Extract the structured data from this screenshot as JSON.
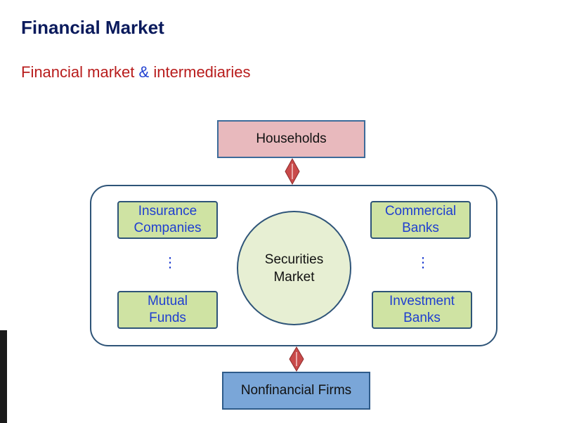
{
  "header": {
    "title": "Financial Market",
    "subtitle_part1": "Financial market",
    "subtitle_amp": "&",
    "subtitle_part2": "intermediaries"
  },
  "diagram": {
    "households": "Households",
    "nonfinancial": "Nonfinancial Firms",
    "securities_line1": "Securities",
    "securities_line2": "Market",
    "insurance_line1": "Insurance",
    "insurance_line2": "Companies",
    "mutual_line1": "Mutual",
    "mutual_line2": "Funds",
    "commercial_line1": "Commercial",
    "commercial_line2": "Banks",
    "investment_line1": "Investment",
    "investment_line2": "Banks",
    "ellipsis": "⋮"
  },
  "colors": {
    "title": "#0a1a5c",
    "subtitle": "#b81c1c",
    "accent_blue": "#1f3fd0",
    "arrow": "#c94a4a"
  }
}
